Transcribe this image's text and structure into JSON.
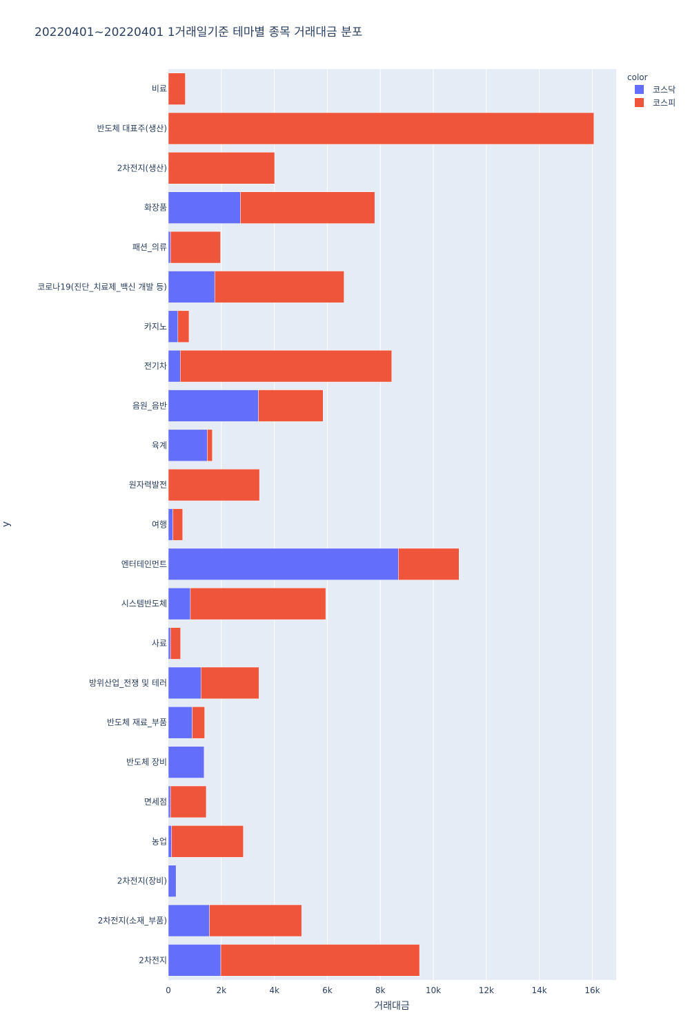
{
  "chart_data": {
    "type": "bar",
    "orientation": "horizontal",
    "barmode": "stack",
    "title": "20220401~20220401 1거래일기준 테마별 종목 거래대금 분포",
    "xlabel": "거래대금",
    "ylabel": "y",
    "xlim": [
      0,
      16900
    ],
    "x_ticks": [
      0,
      2000,
      4000,
      6000,
      8000,
      10000,
      12000,
      14000,
      16000
    ],
    "x_tick_labels": [
      "0",
      "2k",
      "4k",
      "6k",
      "8k",
      "10k",
      "12k",
      "14k",
      "16k"
    ],
    "grid": true,
    "legend": {
      "title": "color",
      "position": "top-right"
    },
    "categories": [
      "비료",
      "반도체 대표주(생산)",
      "2차전지(생산)",
      "화장품",
      "패션_의류",
      "코로나19(진단_치료제_백신 개발 등)",
      "카지노",
      "전기차",
      "음원_음반",
      "육계",
      "원자력발전",
      "여행",
      "엔터테인먼트",
      "시스템반도체",
      "사료",
      "방위산업_전쟁 및 테러",
      "반도체 재료_부품",
      "반도체 장비",
      "면세점",
      "농업",
      "2차전지(장비)",
      "2차전지(소재_부품)",
      "2차전지"
    ],
    "series": [
      {
        "name": "코스닥",
        "color": "#636efa",
        "values": [
          0,
          0,
          0,
          2720,
          80,
          1750,
          360,
          450,
          3400,
          1470,
          0,
          170,
          8680,
          830,
          80,
          1230,
          900,
          1350,
          80,
          120,
          290,
          1550,
          1980
        ]
      },
      {
        "name": "코스피",
        "color": "#ef553b",
        "values": [
          640,
          16060,
          4010,
          5070,
          1890,
          4880,
          420,
          7980,
          2440,
          190,
          3440,
          370,
          2290,
          5110,
          380,
          2190,
          470,
          0,
          1350,
          2710,
          0,
          3480,
          7500
        ]
      }
    ]
  }
}
